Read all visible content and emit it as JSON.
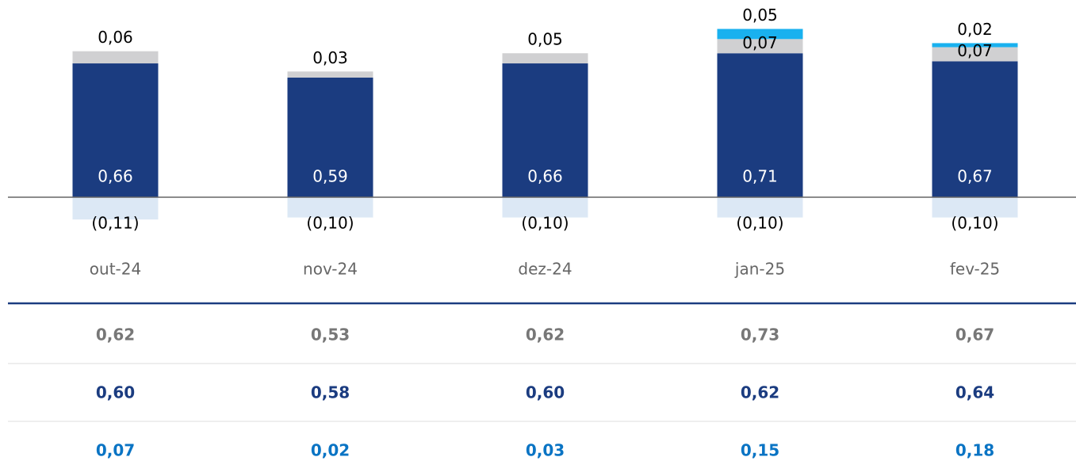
{
  "chart_data": {
    "type": "stacked_bar",
    "categories": [
      "out-24",
      "nov-24",
      "dez-24",
      "jan-25",
      "fev-25"
    ],
    "series": [
      {
        "color": "#1b3c80",
        "values": [
          0.66,
          0.59,
          0.66,
          0.71,
          0.67
        ],
        "value_labels": [
          "0,66",
          "0,59",
          "0,66",
          "0,71",
          "0,67"
        ]
      },
      {
        "color": "#d0d0d2",
        "values": [
          0.06,
          0.03,
          0.05,
          0.07,
          0.07
        ],
        "value_labels": [
          "0,06",
          "0,03",
          "0,05",
          "0,07",
          "0,07"
        ]
      },
      {
        "color": "#19b1ef",
        "values": [
          null,
          null,
          null,
          0.05,
          0.02
        ],
        "value_labels": [
          null,
          null,
          null,
          "0,05",
          "0,02"
        ]
      },
      {
        "color": "#dce8f5",
        "values": [
          -0.11,
          -0.1,
          -0.1,
          -0.1,
          -0.1
        ],
        "value_labels": [
          "(0,11)",
          "(0,10)",
          "(0,10)",
          "(0,10)",
          "(0,10)"
        ]
      }
    ],
    "ylim": [
      -0.15,
      0.85
    ]
  },
  "table": {
    "rows": [
      [
        "0,62",
        "0,53",
        "0,62",
        "0,73",
        "0,67"
      ],
      [
        "0,60",
        "0,58",
        "0,60",
        "0,62",
        "0,64"
      ],
      [
        "0,07",
        "0,02",
        "0,03",
        "0,15",
        "0,18"
      ]
    ]
  }
}
